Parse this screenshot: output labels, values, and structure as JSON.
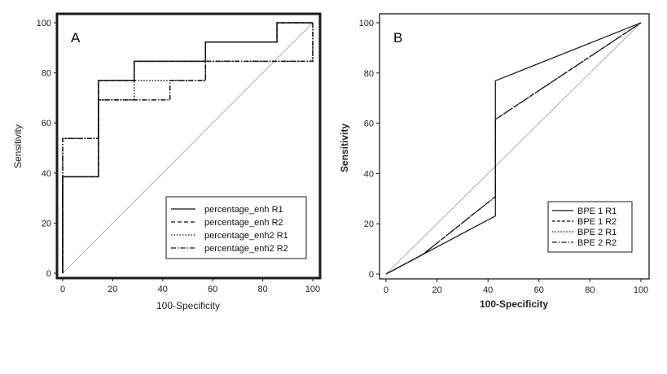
{
  "chart_data": [
    {
      "type": "line",
      "panel_label": "A",
      "xlabel": "100-Specificity",
      "ylabel": "Sensitivity",
      "xlim": [
        0,
        100
      ],
      "ylim": [
        0,
        100
      ],
      "x_ticks": [
        0,
        20,
        40,
        60,
        80,
        100
      ],
      "y_ticks": [
        0,
        20,
        40,
        60,
        80,
        100
      ],
      "reference_line": [
        [
          0,
          0
        ],
        [
          100,
          100
        ]
      ],
      "legend_position": "bottom-right",
      "series": [
        {
          "name": "percentage_enh R1",
          "style": "solid",
          "points": [
            [
              0,
              0
            ],
            [
              0,
              38.5
            ],
            [
              14.3,
              38.5
            ],
            [
              14.3,
              76.9
            ],
            [
              28.6,
              76.9
            ],
            [
              28.6,
              84.6
            ],
            [
              57.1,
              84.6
            ],
            [
              57.1,
              92.3
            ],
            [
              85.7,
              92.3
            ],
            [
              85.7,
              100
            ],
            [
              100,
              100
            ]
          ]
        },
        {
          "name": "percentage_enh R2",
          "style": "dashed",
          "points": [
            [
              0,
              0
            ],
            [
              0,
              38.5
            ],
            [
              14.3,
              38.5
            ],
            [
              14.3,
              76.9
            ],
            [
              28.6,
              76.9
            ],
            [
              28.6,
              84.6
            ],
            [
              57.1,
              84.6
            ],
            [
              57.1,
              92.3
            ],
            [
              85.7,
              92.3
            ],
            [
              85.7,
              100
            ],
            [
              100,
              100
            ]
          ]
        },
        {
          "name": "percentage_enh2 R1",
          "style": "dotted",
          "points": [
            [
              0,
              0
            ],
            [
              0,
              53.8
            ],
            [
              14.3,
              53.8
            ],
            [
              14.3,
              69.2
            ],
            [
              28.6,
              69.2
            ],
            [
              28.6,
              76.9
            ],
            [
              42.9,
              76.9
            ],
            [
              42.9,
              76.9
            ],
            [
              57.1,
              76.9
            ],
            [
              57.1,
              84.6
            ],
            [
              100,
              84.6
            ],
            [
              100,
              100
            ]
          ]
        },
        {
          "name": "percentage_enh2 R2",
          "style": "dashdot",
          "points": [
            [
              0,
              0
            ],
            [
              0,
              53.8
            ],
            [
              14.3,
              53.8
            ],
            [
              14.3,
              69.2
            ],
            [
              42.9,
              69.2
            ],
            [
              42.9,
              76.9
            ],
            [
              57.1,
              76.9
            ],
            [
              57.1,
              84.6
            ],
            [
              100,
              84.6
            ],
            [
              100,
              100
            ]
          ]
        }
      ]
    },
    {
      "type": "line",
      "panel_label": "B",
      "xlabel": "100-Specificity",
      "ylabel": "Sensitivity",
      "xlim": [
        0,
        100
      ],
      "ylim": [
        0,
        100
      ],
      "x_ticks": [
        0,
        20,
        40,
        60,
        80,
        100
      ],
      "y_ticks": [
        0,
        20,
        40,
        60,
        80,
        100
      ],
      "reference_line": [
        [
          0,
          0
        ],
        [
          100,
          100
        ]
      ],
      "legend_position": "bottom-right",
      "series": [
        {
          "name": "BPE 1 R1",
          "style": "solid",
          "points": [
            [
              0,
              0
            ],
            [
              14.3,
              7.7
            ],
            [
              42.9,
              23.1
            ],
            [
              42.9,
              76.9
            ],
            [
              100,
              100
            ]
          ]
        },
        {
          "name": "BPE 1 R2",
          "style": "dashed",
          "points": [
            [
              0,
              0
            ],
            [
              14.3,
              7.7
            ],
            [
              42.9,
              30.8
            ],
            [
              42.9,
              61.5
            ],
            [
              100,
              100
            ]
          ]
        },
        {
          "name": "BPE 2 R1",
          "style": "dotted",
          "points": [
            [
              0,
              0
            ],
            [
              14.3,
              7.7
            ],
            [
              42.9,
              30.8
            ],
            [
              42.9,
              61.5
            ],
            [
              100,
              100
            ]
          ]
        },
        {
          "name": "BPE 2 R2",
          "style": "dashdot",
          "points": [
            [
              0,
              0
            ],
            [
              14.3,
              7.7
            ],
            [
              42.9,
              30.8
            ],
            [
              42.9,
              61.5
            ],
            [
              100,
              100
            ]
          ]
        }
      ]
    }
  ]
}
